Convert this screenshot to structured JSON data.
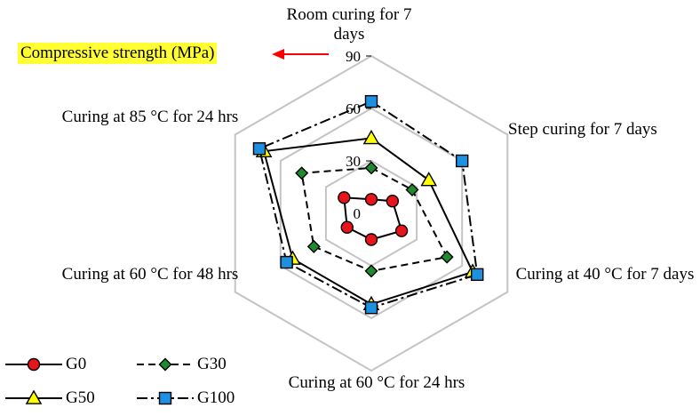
{
  "chart_data": {
    "type": "radar",
    "axes": [
      "Room curing  for 7 days",
      "Step curing for 7 days",
      "Curing at 40 °C for 7 days",
      "Curing at 60 °C for 24 hrs",
      "Curing at 60 °C for 48 hrs",
      "Curing at 85 °C for 24 hrs"
    ],
    "radial_label": "Compressive strength (MPa)",
    "range": [
      0,
      90
    ],
    "ticks": [
      0,
      30,
      60,
      90
    ],
    "grid": true,
    "legend_position": "bottom-left",
    "series": [
      {
        "name": "G0",
        "values": [
          8,
          14,
          20,
          15,
          16,
          18
        ],
        "line": "solid",
        "marker": "circle",
        "color": "#e8141b"
      },
      {
        "name": "G30",
        "values": [
          26,
          27,
          50,
          33,
          38,
          46
        ],
        "line": "dashed",
        "marker": "diamond",
        "color": "#1c8c2e"
      },
      {
        "name": "G50",
        "values": [
          43,
          38,
          67,
          52,
          52,
          71
        ],
        "line": "solid",
        "marker": "triangle",
        "color": "#ffff00"
      },
      {
        "name": "G100",
        "values": [
          64,
          60,
          70,
          54,
          56,
          74
        ],
        "line": "dashdot",
        "marker": "square",
        "color": "#1e90e0"
      }
    ]
  },
  "annotation_arrow_color": "#ff0000"
}
